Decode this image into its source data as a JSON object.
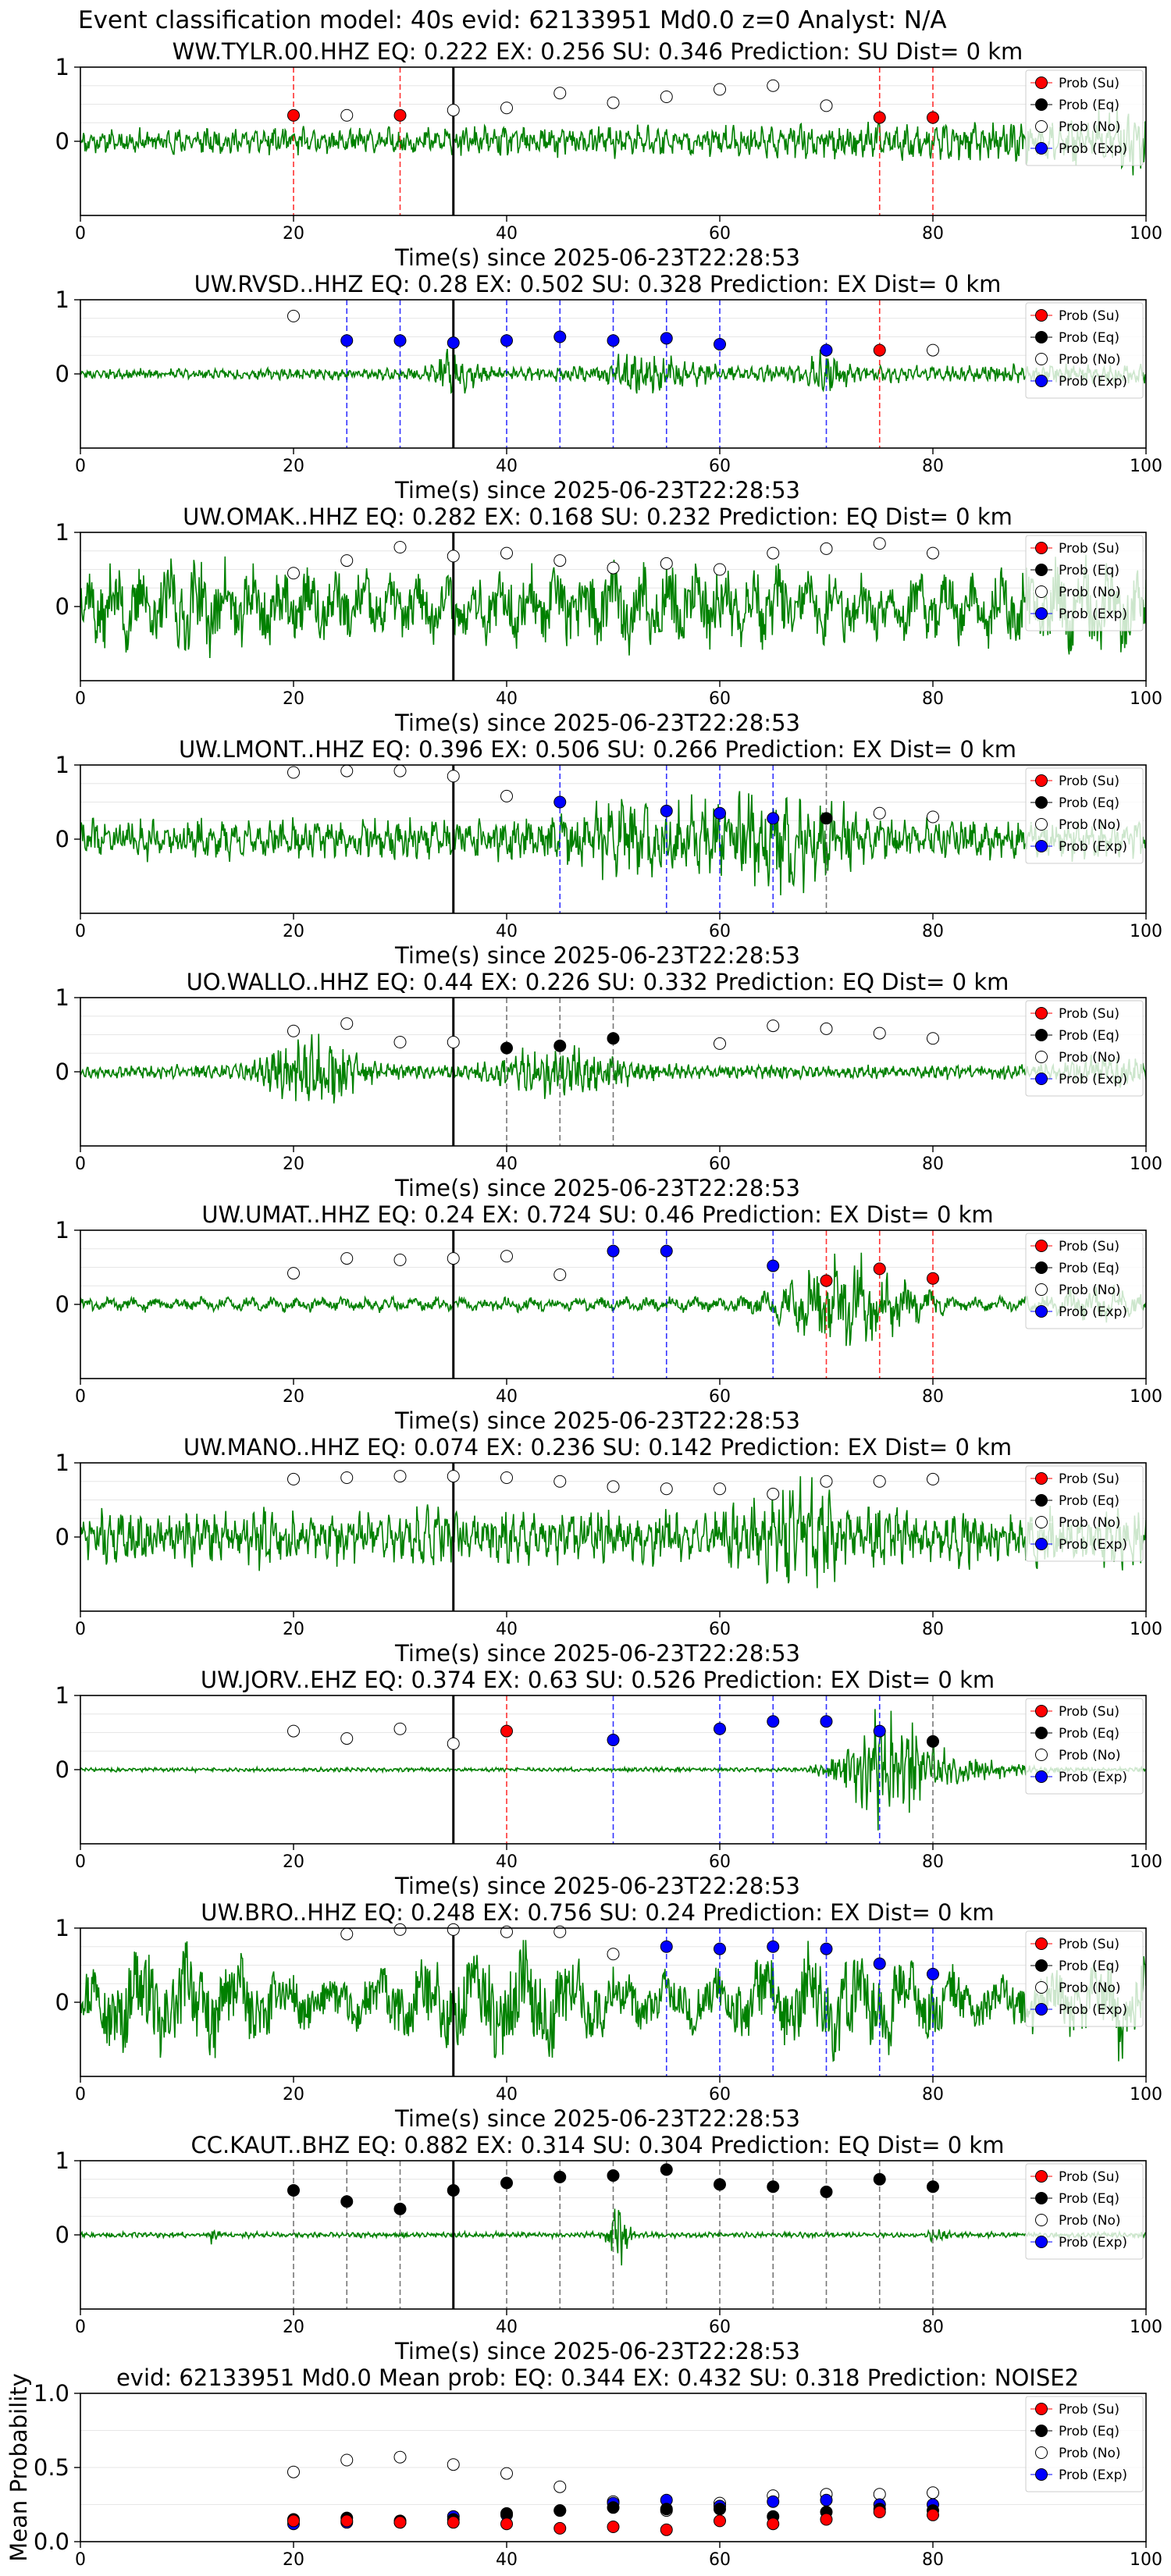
{
  "figure_title": "Event classification model: 40s evid: 62133951 Md0.0 z=0 Analyst: N/A",
  "legend_labels": [
    "Prob (Su)",
    "Prob (Eq)",
    "Prob (No)",
    "Prob (Exp)"
  ],
  "colors": {
    "su": "#ff0000",
    "eq": "#000000",
    "no": "#ffffff",
    "exp": "#0000ff",
    "waveform": "#008000",
    "grid": "#e6e6e6"
  },
  "chart_data": [
    {
      "type": "line",
      "title": "WW.TYLR.00.HHZ   EQ: 0.222  EX: 0.256  SU: 0.346   Prediction: SU    Dist= 0 km",
      "xlabel": "Time(s) since 2025-06-23T22:28:53",
      "xlim": [
        0,
        100
      ],
      "ylim": [
        -1,
        1
      ],
      "x_ticks": [
        0,
        20,
        40,
        60,
        80,
        100
      ],
      "y_ticks": [
        0,
        1
      ],
      "origin_time": 35,
      "amplitude": 0.32,
      "wave_period": 0.9,
      "seed": 11,
      "envelope": "noise_rise",
      "markers": [
        {
          "x": 20,
          "y": 0.35,
          "cls": "su"
        },
        {
          "x": 25,
          "y": 0.35,
          "cls": "no"
        },
        {
          "x": 30,
          "y": 0.35,
          "cls": "su"
        },
        {
          "x": 35,
          "y": 0.42,
          "cls": "no"
        },
        {
          "x": 40,
          "y": 0.45,
          "cls": "no"
        },
        {
          "x": 45,
          "y": 0.65,
          "cls": "no"
        },
        {
          "x": 50,
          "y": 0.52,
          "cls": "no"
        },
        {
          "x": 55,
          "y": 0.6,
          "cls": "no"
        },
        {
          "x": 60,
          "y": 0.7,
          "cls": "no"
        },
        {
          "x": 65,
          "y": 0.75,
          "cls": "no"
        },
        {
          "x": 70,
          "y": 0.48,
          "cls": "no"
        },
        {
          "x": 75,
          "y": 0.32,
          "cls": "su"
        },
        {
          "x": 80,
          "y": 0.32,
          "cls": "su"
        }
      ]
    },
    {
      "type": "line",
      "title": "UW.RVSD..HHZ   EQ: 0.28  EX: 0.502  SU: 0.328   Prediction: EX    Dist= 0 km",
      "xlabel": "Time(s) since 2025-06-23T22:28:53",
      "xlim": [
        0,
        100
      ],
      "ylim": [
        -1,
        1
      ],
      "x_ticks": [
        0,
        20,
        40,
        60,
        80,
        100
      ],
      "y_ticks": [
        0,
        1
      ],
      "origin_time": 35,
      "amplitude": 0.18,
      "wave_period": 0.7,
      "seed": 23,
      "envelope": "bursts",
      "markers": [
        {
          "x": 20,
          "y": 0.78,
          "cls": "no"
        },
        {
          "x": 25,
          "y": 0.45,
          "cls": "exp"
        },
        {
          "x": 30,
          "y": 0.45,
          "cls": "exp"
        },
        {
          "x": 35,
          "y": 0.42,
          "cls": "exp"
        },
        {
          "x": 40,
          "y": 0.45,
          "cls": "exp"
        },
        {
          "x": 45,
          "y": 0.5,
          "cls": "exp"
        },
        {
          "x": 50,
          "y": 0.45,
          "cls": "exp"
        },
        {
          "x": 55,
          "y": 0.48,
          "cls": "exp"
        },
        {
          "x": 60,
          "y": 0.4,
          "cls": "exp"
        },
        {
          "x": 70,
          "y": 0.32,
          "cls": "exp"
        },
        {
          "x": 75,
          "y": 0.32,
          "cls": "su"
        },
        {
          "x": 80,
          "y": 0.32,
          "cls": "no"
        }
      ]
    },
    {
      "type": "line",
      "title": "UW.OMAK..HHZ   EQ: 0.282  EX: 0.168  SU: 0.232   Prediction: EQ    Dist= 0 km",
      "xlabel": "Time(s) since 2025-06-23T22:28:53",
      "xlim": [
        0,
        100
      ],
      "ylim": [
        -1,
        1
      ],
      "x_ticks": [
        0,
        20,
        40,
        60,
        80,
        100
      ],
      "y_ticks": [
        0,
        1
      ],
      "origin_time": 35,
      "amplitude": 0.7,
      "wave_period": 2.6,
      "seed": 37,
      "envelope": "flat",
      "markers": [
        {
          "x": 20,
          "y": 0.45,
          "cls": "no"
        },
        {
          "x": 25,
          "y": 0.62,
          "cls": "no"
        },
        {
          "x": 30,
          "y": 0.8,
          "cls": "no"
        },
        {
          "x": 35,
          "y": 0.68,
          "cls": "no"
        },
        {
          "x": 40,
          "y": 0.72,
          "cls": "no"
        },
        {
          "x": 45,
          "y": 0.62,
          "cls": "no"
        },
        {
          "x": 50,
          "y": 0.52,
          "cls": "no"
        },
        {
          "x": 55,
          "y": 0.58,
          "cls": "no"
        },
        {
          "x": 60,
          "y": 0.5,
          "cls": "no"
        },
        {
          "x": 65,
          "y": 0.72,
          "cls": "no"
        },
        {
          "x": 70,
          "y": 0.78,
          "cls": "no"
        },
        {
          "x": 75,
          "y": 0.85,
          "cls": "no"
        },
        {
          "x": 80,
          "y": 0.72,
          "cls": "no"
        }
      ]
    },
    {
      "type": "line",
      "title": "UW.LMONT..HHZ   EQ: 0.396  EX: 0.506  SU: 0.266   Prediction: EX    Dist= 0 km",
      "xlabel": "Time(s) since 2025-06-23T22:28:53",
      "xlim": [
        0,
        100
      ],
      "ylim": [
        -1,
        1
      ],
      "x_ticks": [
        0,
        20,
        40,
        60,
        80,
        100
      ],
      "y_ticks": [
        0,
        1
      ],
      "origin_time": 35,
      "amplitude": 0.5,
      "wave_period": 1.1,
      "seed": 41,
      "envelope": "center_burst",
      "markers": [
        {
          "x": 20,
          "y": 0.9,
          "cls": "no"
        },
        {
          "x": 25,
          "y": 0.92,
          "cls": "no"
        },
        {
          "x": 30,
          "y": 0.92,
          "cls": "no"
        },
        {
          "x": 35,
          "y": 0.85,
          "cls": "no"
        },
        {
          "x": 40,
          "y": 0.58,
          "cls": "no"
        },
        {
          "x": 45,
          "y": 0.5,
          "cls": "exp"
        },
        {
          "x": 55,
          "y": 0.38,
          "cls": "exp"
        },
        {
          "x": 60,
          "y": 0.35,
          "cls": "exp"
        },
        {
          "x": 65,
          "y": 0.28,
          "cls": "exp"
        },
        {
          "x": 70,
          "y": 0.28,
          "cls": "eq"
        },
        {
          "x": 75,
          "y": 0.35,
          "cls": "no"
        },
        {
          "x": 80,
          "y": 0.3,
          "cls": "no"
        }
      ]
    },
    {
      "type": "line",
      "title": "UO.WALLO..HHZ   EQ: 0.44  EX: 0.226  SU: 0.332   Prediction: EQ    Dist= 0 km",
      "xlabel": "Time(s) since 2025-06-23T22:28:53",
      "xlim": [
        0,
        100
      ],
      "ylim": [
        -1,
        1
      ],
      "x_ticks": [
        0,
        20,
        40,
        60,
        80,
        100
      ],
      "y_ticks": [
        0,
        1
      ],
      "origin_time": 35,
      "amplitude": 0.3,
      "wave_period": 0.6,
      "seed": 53,
      "envelope": "two_bursts",
      "markers": [
        {
          "x": 20,
          "y": 0.55,
          "cls": "no"
        },
        {
          "x": 25,
          "y": 0.65,
          "cls": "no"
        },
        {
          "x": 30,
          "y": 0.4,
          "cls": "no"
        },
        {
          "x": 35,
          "y": 0.4,
          "cls": "no"
        },
        {
          "x": 40,
          "y": 0.32,
          "cls": "eq"
        },
        {
          "x": 45,
          "y": 0.35,
          "cls": "eq"
        },
        {
          "x": 50,
          "y": 0.45,
          "cls": "eq"
        },
        {
          "x": 60,
          "y": 0.38,
          "cls": "no"
        },
        {
          "x": 65,
          "y": 0.62,
          "cls": "no"
        },
        {
          "x": 70,
          "y": 0.58,
          "cls": "no"
        },
        {
          "x": 75,
          "y": 0.52,
          "cls": "no"
        },
        {
          "x": 80,
          "y": 0.45,
          "cls": "no"
        }
      ]
    },
    {
      "type": "line",
      "title": "UW.UMAT..HHZ   EQ: 0.24  EX: 0.724  SU: 0.46   Prediction: EX    Dist= 0 km",
      "xlabel": "Time(s) since 2025-06-23T22:28:53",
      "xlim": [
        0,
        100
      ],
      "ylim": [
        -1,
        1
      ],
      "x_ticks": [
        0,
        20,
        40,
        60,
        80,
        100
      ],
      "y_ticks": [
        0,
        1
      ],
      "origin_time": 35,
      "amplitude": 0.3,
      "wave_period": 2.2,
      "seed": 61,
      "envelope": "late_burst",
      "markers": [
        {
          "x": 20,
          "y": 0.42,
          "cls": "no"
        },
        {
          "x": 25,
          "y": 0.62,
          "cls": "no"
        },
        {
          "x": 30,
          "y": 0.6,
          "cls": "no"
        },
        {
          "x": 35,
          "y": 0.62,
          "cls": "no"
        },
        {
          "x": 40,
          "y": 0.65,
          "cls": "no"
        },
        {
          "x": 45,
          "y": 0.4,
          "cls": "no"
        },
        {
          "x": 50,
          "y": 0.72,
          "cls": "exp"
        },
        {
          "x": 55,
          "y": 0.72,
          "cls": "exp"
        },
        {
          "x": 65,
          "y": 0.52,
          "cls": "exp"
        },
        {
          "x": 70,
          "y": 0.32,
          "cls": "su"
        },
        {
          "x": 75,
          "y": 0.48,
          "cls": "su"
        },
        {
          "x": 80,
          "y": 0.35,
          "cls": "su"
        }
      ]
    },
    {
      "type": "line",
      "title": "UW.MANO..HHZ   EQ: 0.074  EX: 0.236  SU: 0.142   Prediction: EX    Dist= 0 km",
      "xlabel": "Time(s) since 2025-06-23T22:28:53",
      "xlim": [
        0,
        100
      ],
      "ylim": [
        -1,
        1
      ],
      "x_ticks": [
        0,
        20,
        40,
        60,
        80,
        100
      ],
      "y_ticks": [
        0,
        1
      ],
      "origin_time": 35,
      "amplitude": 0.45,
      "wave_period": 0.9,
      "seed": 71,
      "envelope": "pulsed",
      "markers": [
        {
          "x": 20,
          "y": 0.78,
          "cls": "no"
        },
        {
          "x": 25,
          "y": 0.8,
          "cls": "no"
        },
        {
          "x": 30,
          "y": 0.82,
          "cls": "no"
        },
        {
          "x": 35,
          "y": 0.82,
          "cls": "no"
        },
        {
          "x": 40,
          "y": 0.8,
          "cls": "no"
        },
        {
          "x": 45,
          "y": 0.75,
          "cls": "no"
        },
        {
          "x": 50,
          "y": 0.68,
          "cls": "no"
        },
        {
          "x": 55,
          "y": 0.65,
          "cls": "no"
        },
        {
          "x": 60,
          "y": 0.65,
          "cls": "no"
        },
        {
          "x": 65,
          "y": 0.58,
          "cls": "no"
        },
        {
          "x": 70,
          "y": 0.75,
          "cls": "no"
        },
        {
          "x": 75,
          "y": 0.75,
          "cls": "no"
        },
        {
          "x": 80,
          "y": 0.78,
          "cls": "no"
        }
      ]
    },
    {
      "type": "line",
      "title": "UW.JORV..EHZ   EQ: 0.374  EX: 0.63  SU: 0.526   Prediction: EX    Dist= 0 km",
      "xlabel": "Time(s) since 2025-06-23T22:28:53",
      "xlim": [
        0,
        100
      ],
      "ylim": [
        -1,
        1
      ],
      "x_ticks": [
        0,
        20,
        40,
        60,
        80,
        100
      ],
      "y_ticks": [
        0,
        1
      ],
      "origin_time": 35,
      "amplitude": 0.03,
      "wave_period": 0.5,
      "seed": 83,
      "envelope": "quiet_then_burst",
      "markers": [
        {
          "x": 20,
          "y": 0.52,
          "cls": "no"
        },
        {
          "x": 25,
          "y": 0.42,
          "cls": "no"
        },
        {
          "x": 30,
          "y": 0.55,
          "cls": "no"
        },
        {
          "x": 35,
          "y": 0.35,
          "cls": "no"
        },
        {
          "x": 40,
          "y": 0.52,
          "cls": "su"
        },
        {
          "x": 50,
          "y": 0.4,
          "cls": "exp"
        },
        {
          "x": 60,
          "y": 0.55,
          "cls": "exp"
        },
        {
          "x": 65,
          "y": 0.65,
          "cls": "exp"
        },
        {
          "x": 70,
          "y": 0.65,
          "cls": "exp"
        },
        {
          "x": 75,
          "y": 0.52,
          "cls": "exp"
        },
        {
          "x": 80,
          "y": 0.38,
          "cls": "eq"
        }
      ]
    },
    {
      "type": "line",
      "title": "UW.BRO..HHZ   EQ: 0.248  EX: 0.756  SU: 0.24   Prediction: EX    Dist= 0 km",
      "xlabel": "Time(s) since 2025-06-23T22:28:53",
      "xlim": [
        0,
        100
      ],
      "ylim": [
        -1,
        1
      ],
      "x_ticks": [
        0,
        20,
        40,
        60,
        80,
        100
      ],
      "y_ticks": [
        0,
        1
      ],
      "origin_time": 35,
      "amplitude": 0.85,
      "wave_period": 4.5,
      "seed": 97,
      "envelope": "swell",
      "markers": [
        {
          "x": 25,
          "y": 0.92,
          "cls": "no"
        },
        {
          "x": 30,
          "y": 0.98,
          "cls": "no"
        },
        {
          "x": 35,
          "y": 0.98,
          "cls": "no"
        },
        {
          "x": 40,
          "y": 0.95,
          "cls": "no"
        },
        {
          "x": 45,
          "y": 0.95,
          "cls": "no"
        },
        {
          "x": 50,
          "y": 0.65,
          "cls": "no"
        },
        {
          "x": 55,
          "y": 0.75,
          "cls": "exp"
        },
        {
          "x": 60,
          "y": 0.72,
          "cls": "exp"
        },
        {
          "x": 65,
          "y": 0.75,
          "cls": "exp"
        },
        {
          "x": 70,
          "y": 0.72,
          "cls": "exp"
        },
        {
          "x": 75,
          "y": 0.52,
          "cls": "exp"
        },
        {
          "x": 80,
          "y": 0.38,
          "cls": "exp"
        }
      ]
    },
    {
      "type": "line",
      "title": "CC.KAUT..BHZ   EQ: 0.882  EX: 0.314  SU: 0.304   Prediction: EQ    Dist= 0 km",
      "xlabel": "Time(s) since 2025-06-23T22:28:53",
      "xlim": [
        0,
        100
      ],
      "ylim": [
        -1,
        1
      ],
      "x_ticks": [
        0,
        20,
        40,
        60,
        80,
        100
      ],
      "y_ticks": [
        0,
        1
      ],
      "origin_time": 35,
      "amplitude": 0.04,
      "wave_period": 0.5,
      "seed": 101,
      "envelope": "spike",
      "markers": [
        {
          "x": 20,
          "y": 0.6,
          "cls": "eq"
        },
        {
          "x": 25,
          "y": 0.45,
          "cls": "eq"
        },
        {
          "x": 30,
          "y": 0.35,
          "cls": "eq"
        },
        {
          "x": 35,
          "y": 0.6,
          "cls": "eq"
        },
        {
          "x": 40,
          "y": 0.7,
          "cls": "eq"
        },
        {
          "x": 45,
          "y": 0.78,
          "cls": "eq"
        },
        {
          "x": 50,
          "y": 0.8,
          "cls": "eq"
        },
        {
          "x": 55,
          "y": 0.88,
          "cls": "eq"
        },
        {
          "x": 60,
          "y": 0.68,
          "cls": "eq"
        },
        {
          "x": 65,
          "y": 0.65,
          "cls": "eq"
        },
        {
          "x": 70,
          "y": 0.58,
          "cls": "eq"
        },
        {
          "x": 75,
          "y": 0.75,
          "cls": "eq"
        },
        {
          "x": 80,
          "y": 0.65,
          "cls": "eq"
        }
      ]
    },
    {
      "type": "scatter",
      "title": "evid: 62133951  Md0.0   Mean prob:   EQ: 0.344  EX: 0.432  SU: 0.318   Prediction: NOISE2",
      "xlabel": "",
      "ylabel": "Mean Probability",
      "xlim": [
        0,
        100
      ],
      "ylim": [
        0,
        1
      ],
      "x_ticks": [
        0,
        20,
        40,
        60,
        80,
        100
      ],
      "y_ticks": [
        0.0,
        0.5,
        1.0
      ],
      "y_tick_labels": [
        "0.0",
        "0.5",
        "1.0"
      ],
      "x": [
        20,
        25,
        30,
        35,
        40,
        45,
        50,
        55,
        60,
        65,
        70,
        75,
        80
      ],
      "series": [
        {
          "cls": "no",
          "values": [
            0.47,
            0.55,
            0.57,
            0.52,
            0.46,
            0.37,
            0.27,
            0.21,
            0.26,
            0.31,
            0.32,
            0.32,
            0.33
          ]
        },
        {
          "cls": "exp",
          "values": [
            0.12,
            0.13,
            0.13,
            0.17,
            0.18,
            0.21,
            0.26,
            0.28,
            0.24,
            0.27,
            0.28,
            0.25,
            0.25
          ]
        },
        {
          "cls": "eq",
          "values": [
            0.15,
            0.16,
            0.14,
            0.15,
            0.19,
            0.21,
            0.23,
            0.22,
            0.22,
            0.17,
            0.2,
            0.22,
            0.21
          ]
        },
        {
          "cls": "su",
          "values": [
            0.14,
            0.14,
            0.13,
            0.13,
            0.12,
            0.09,
            0.1,
            0.08,
            0.14,
            0.12,
            0.15,
            0.2,
            0.18
          ]
        }
      ]
    }
  ]
}
